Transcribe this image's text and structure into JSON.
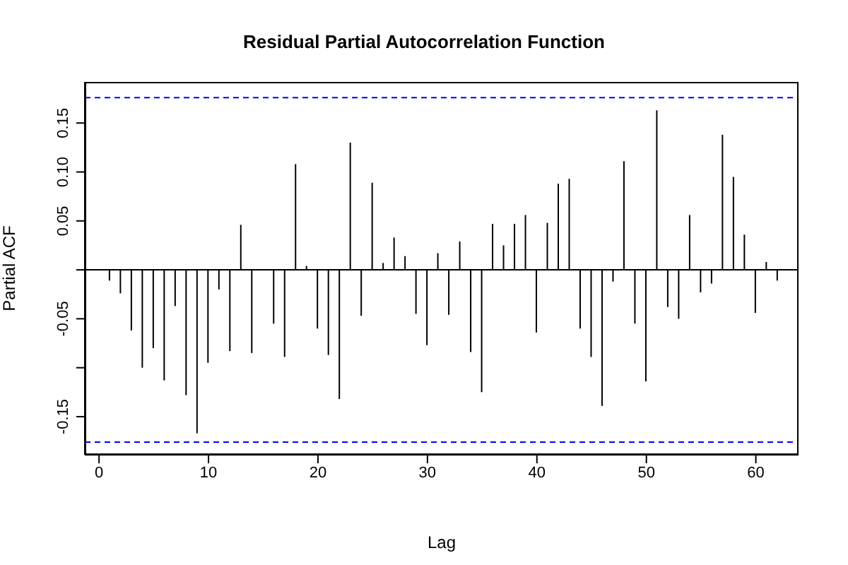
{
  "chart_data": {
    "type": "bar",
    "title": "Residual Partial Autocorrelation Function",
    "xlabel": "Lag",
    "ylabel": "Partial ACF",
    "x": [
      1,
      2,
      3,
      4,
      5,
      6,
      7,
      8,
      9,
      10,
      11,
      12,
      13,
      14,
      15,
      16,
      17,
      18,
      19,
      20,
      21,
      22,
      23,
      24,
      25,
      26,
      27,
      28,
      29,
      30,
      31,
      32,
      33,
      34,
      35,
      36,
      37,
      38,
      39,
      40,
      41,
      42,
      43,
      44,
      45,
      46,
      47,
      48,
      49,
      50,
      51,
      52,
      53,
      54,
      55,
      56,
      57,
      58,
      59,
      60,
      61,
      62
    ],
    "values": [
      -0.011,
      -0.024,
      -0.062,
      -0.1,
      -0.08,
      -0.113,
      -0.037,
      -0.128,
      -0.167,
      -0.095,
      -0.02,
      -0.083,
      0.046,
      -0.085,
      null,
      -0.055,
      -0.089,
      0.108,
      0.004,
      -0.06,
      -0.087,
      -0.132,
      0.13,
      -0.047,
      0.089,
      0.007,
      0.033,
      0.014,
      -0.045,
      -0.077,
      0.017,
      -0.046,
      0.029,
      -0.084,
      -0.125,
      0.047,
      0.025,
      0.047,
      0.056,
      -0.064,
      0.048,
      0.088,
      0.093,
      -0.06,
      -0.089,
      -0.139,
      -0.012,
      0.111,
      -0.055,
      -0.114,
      0.163,
      -0.038,
      -0.05,
      0.056,
      -0.023,
      -0.014,
      0.138,
      0.095,
      0.036,
      -0.044,
      0.008,
      -0.011
    ],
    "color": "#000000",
    "xlim": [
      -1.3,
      63.9
    ],
    "xticks": [
      0,
      10,
      20,
      30,
      40,
      50,
      60
    ],
    "ylim": [
      -0.189,
      0.192
    ],
    "yticks": [
      {
        "value": -0.15,
        "label": "-0.15"
      },
      {
        "value": -0.1,
        "label": null
      },
      {
        "value": -0.05,
        "label": "-0.05"
      },
      {
        "value": 0,
        "label": null
      },
      {
        "value": 0.05,
        "label": "0.05"
      },
      {
        "value": 0.1,
        "label": "0.10"
      },
      {
        "value": 0.15,
        "label": "0.15"
      }
    ],
    "ref_lines": [
      {
        "axis": "y",
        "value": 0.176,
        "color": "#0000ff",
        "line_style": "dashed"
      },
      {
        "axis": "y",
        "value": -0.176,
        "color": "#0000ff",
        "line_style": "dashed"
      },
      {
        "axis": "y",
        "value": 0,
        "color": "#000000",
        "line_style": "solid"
      }
    ],
    "grid": false,
    "legend": false
  }
}
